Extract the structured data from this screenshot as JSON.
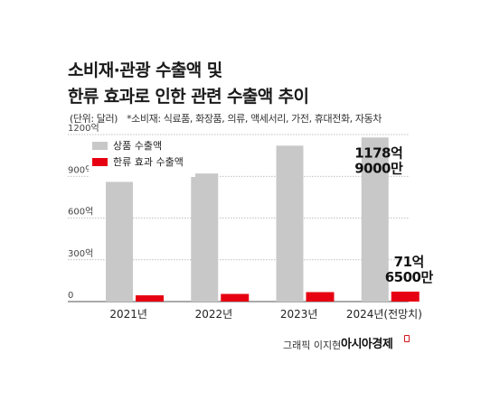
{
  "header": {
    "title_line1": "소비재·관광 수출액 및",
    "title_line2": "한류 효과로 인한 관련 수출액 추이",
    "unit_note": "(단위: 달러)",
    "category_note": "*소비재: 식료품, 화장품, 의류, 액세서리, 가전, 휴대전화, 자동차"
  },
  "chart_data": {
    "type": "bar",
    "categories": [
      "2021년",
      "2022년",
      "2023년",
      "2024년(전망치)"
    ],
    "series": [
      {
        "name": "상품 수출액",
        "values": [
          860,
          920,
          1120,
          1178.9
        ],
        "color": "#c8c8c8"
      },
      {
        "name": "한류 효과 수출액",
        "values": [
          45,
          55,
          68,
          71.65
        ],
        "color": "#e60012"
      }
    ],
    "yticks": [
      0,
      300,
      600,
      900,
      1200
    ],
    "ytick_labels": [
      "0",
      "300억",
      "600억",
      "900억",
      "1200억"
    ],
    "ylim": [
      0,
      1200
    ],
    "legend_position": "top-left",
    "annotations": [
      {
        "series": 0,
        "index": 3,
        "line1": "1178억",
        "line2": "9000만"
      },
      {
        "series": 1,
        "index": 3,
        "line1": "71억",
        "line2": "6500만"
      }
    ]
  },
  "footer": {
    "credit": "그래픽 이지현",
    "brand": "아시아경제"
  }
}
